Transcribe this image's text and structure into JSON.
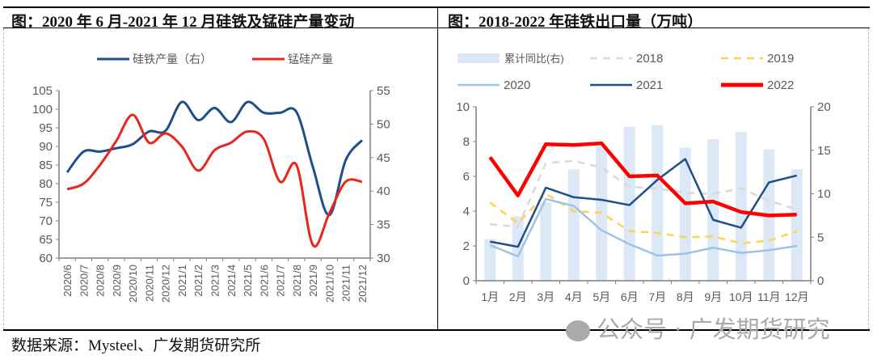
{
  "titles": {
    "left": "图：2020 年 6 月-2021 年 12 月硅铁及锰硅产量变动",
    "right": "图：2018-2022 年硅铁出口量（万吨）"
  },
  "footer": "数据来源：Mysteel、广发期货研究所",
  "watermark": "公众号 · 广发期货研究",
  "chart_data": [
    {
      "type": "line",
      "title": "",
      "ylim": [
        60,
        105
      ],
      "y2lim": [
        30,
        55
      ],
      "yticks": [
        "60",
        "65",
        "70",
        "75",
        "80",
        "85",
        "90",
        "95",
        "100",
        "105"
      ],
      "y2ticks": [
        "30",
        "35",
        "40",
        "45",
        "50",
        "55"
      ],
      "categories": [
        "2020/6",
        "2020/7",
        "2020/8",
        "2020/9",
        "2020/10",
        "2020/11",
        "2020/12",
        "2021/1",
        "2021/2",
        "2021/3",
        "2021/4",
        "2021/5",
        "2021/6",
        "2021/7",
        "2021/8",
        "2021/9",
        "2021/10",
        "2021/11",
        "2021/12"
      ],
      "legend": "top",
      "series": [
        {
          "name": "硅铁产量（右）",
          "axis": "right",
          "color": "#1f4e8c",
          "values": [
            42.8,
            45.9,
            45.9,
            46.4,
            47.0,
            48.9,
            49.0,
            53.3,
            50.6,
            52.4,
            50.3,
            53.3,
            51.7,
            51.7,
            51.8,
            43.6,
            36.4,
            44.6,
            47.6
          ]
        },
        {
          "name": "锰硅产量",
          "axis": "left",
          "color": "#e8251f",
          "values": [
            78.5,
            80,
            85,
            91.5,
            98.5,
            91,
            93.5,
            90,
            83.5,
            89,
            91,
            94,
            92,
            80.5,
            85,
            63.5,
            72,
            80.5,
            80.5
          ]
        }
      ]
    },
    {
      "type": "bar+line",
      "title": "",
      "ylim": [
        0,
        10
      ],
      "y2lim": [
        0,
        20
      ],
      "yticks": [
        "0",
        "2",
        "4",
        "6",
        "8",
        "10"
      ],
      "y2ticks": [
        "0",
        "5",
        "10",
        "15",
        "20"
      ],
      "categories": [
        "1月",
        "2月",
        "3月",
        "4月",
        "5月",
        "6月",
        "7月",
        "8月",
        "9月",
        "10月",
        "11月",
        "12月"
      ],
      "legend": "top",
      "bars": {
        "name": "累计同比(右)",
        "axis": "right",
        "color": "#dce8f5",
        "values": [
          4.8,
          7.4,
          9.0,
          12.8,
          15.5,
          17.7,
          17.9,
          15.3,
          16.3,
          17.1,
          15.1,
          12.8
        ]
      },
      "series": [
        {
          "name": "2018",
          "color": "#d9d9d9",
          "style": "dashed",
          "values": [
            3.25,
            3.1,
            6.75,
            6.9,
            6.5,
            5.4,
            5.3,
            5.05,
            5.0,
            5.3,
            4.6,
            4.1
          ]
        },
        {
          "name": "2019",
          "color": "#ffd34d",
          "style": "dashed",
          "values": [
            4.5,
            3.3,
            5.0,
            4.0,
            3.9,
            2.85,
            2.75,
            2.5,
            2.55,
            2.15,
            2.3,
            2.85
          ]
        },
        {
          "name": "2020",
          "color": "#9dc3e6",
          "style": "solid",
          "values": [
            2.05,
            1.4,
            4.7,
            4.3,
            2.9,
            2.1,
            1.45,
            1.55,
            1.9,
            1.6,
            1.75,
            2.0
          ]
        },
        {
          "name": "2021",
          "color": "#1f4e8c",
          "style": "solid",
          "values": [
            2.25,
            1.95,
            5.35,
            4.8,
            4.65,
            4.35,
            5.8,
            7.0,
            3.5,
            3.05,
            5.65,
            6.05
          ]
        },
        {
          "name": "2022",
          "color": "#ff0000",
          "style": "thick",
          "values": [
            7.1,
            4.9,
            7.85,
            7.8,
            7.9,
            6.0,
            6.05,
            4.45,
            4.55,
            3.95,
            3.75,
            3.8
          ]
        }
      ]
    }
  ]
}
